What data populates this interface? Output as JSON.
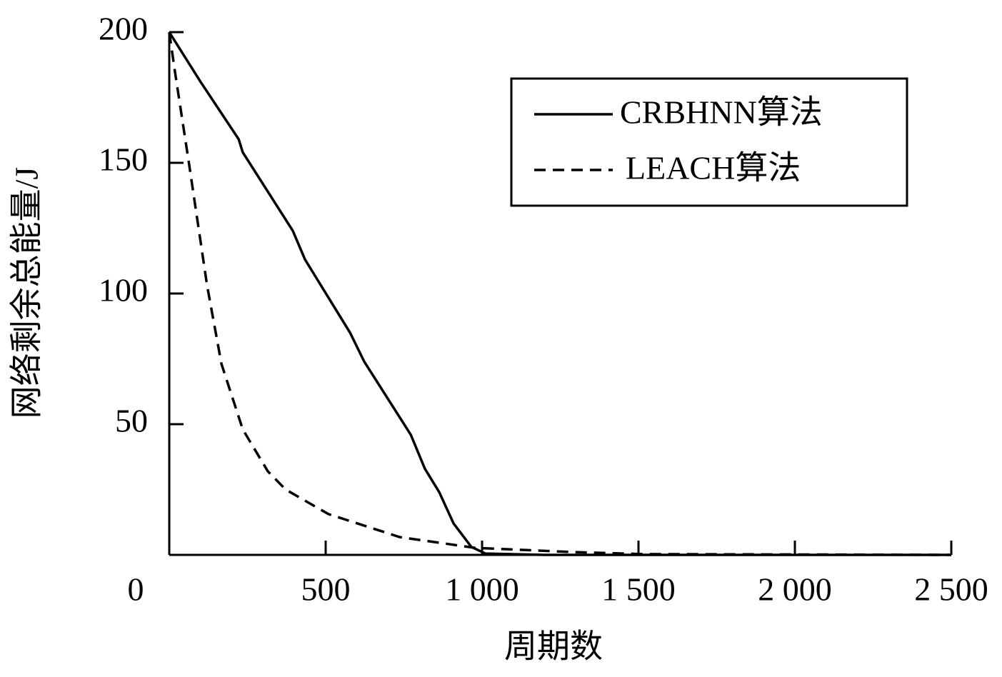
{
  "chart_data": {
    "type": "line",
    "xlabel": "周期数",
    "ylabel": "网络剩余总能量/J",
    "xlim": [
      0,
      2500
    ],
    "ylim": [
      0,
      200
    ],
    "xticks": [
      0,
      500,
      {
        "value": 1000,
        "label": "1 000"
      },
      {
        "value": 1500,
        "label": "1 500"
      },
      {
        "value": 2000,
        "label": "2 000"
      },
      {
        "value": 2500,
        "label": "2 500"
      }
    ],
    "yticks": [
      50,
      100,
      150,
      200
    ],
    "legend": "upper right",
    "series": [
      {
        "name": "CRBHNN算法",
        "color": "#000000",
        "style": "solid",
        "x": [
          0,
          100,
          222,
          235,
          395,
          434,
          578,
          623,
          772,
          817,
          863,
          909,
          966,
          1011,
          1200,
          2500
        ],
        "values": [
          200,
          181,
          159,
          154,
          124,
          113,
          85,
          74,
          46,
          33,
          24,
          12,
          3,
          0.5,
          0,
          0
        ]
      },
      {
        "name": "LEACH算法",
        "color": "#000000",
        "style": "dashed",
        "x": [
          0,
          18,
          64,
          121,
          167,
          235,
          315,
          372,
          509,
          737,
          977,
          1285,
          1514,
          2500
        ],
        "values": [
          200,
          185,
          149,
          103,
          73,
          48,
          32,
          25,
          15.6,
          6.8,
          2.7,
          1.1,
          0.3,
          0
        ]
      }
    ]
  }
}
